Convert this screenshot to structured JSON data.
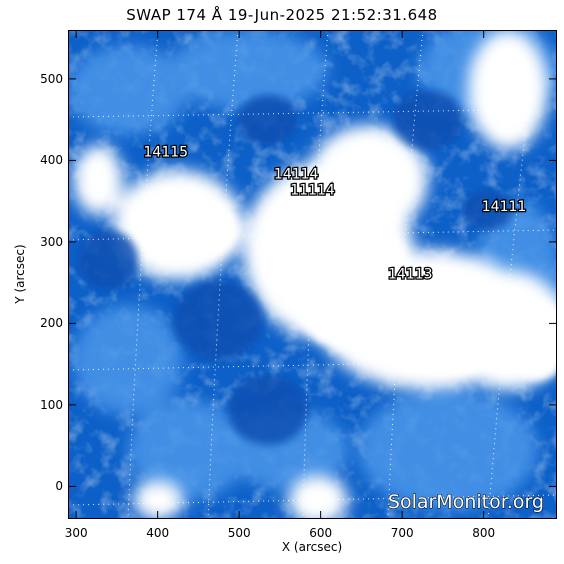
{
  "title": "SWAP 174 Å 19-Jun-2025 21:52:31.648",
  "watermark": "SolarMonitor.org",
  "axes": {
    "xlabel": "X (arcsec)",
    "ylabel": "Y (arcsec)",
    "xlim": [
      290,
      890
    ],
    "ylim": [
      -40,
      560
    ],
    "xticks": [
      "300",
      "400",
      "500",
      "600",
      "700",
      "800"
    ],
    "yticks": [
      "0",
      "100",
      "200",
      "300",
      "400",
      "500"
    ]
  },
  "regions": [
    {
      "label": "14115",
      "x": 410,
      "y": 405
    },
    {
      "label": "14114",
      "x": 570,
      "y": 378
    },
    {
      "label": "11114",
      "x": 590,
      "y": 358
    },
    {
      "label": "14111",
      "x": 825,
      "y": 338
    },
    {
      "label": "14113",
      "x": 710,
      "y": 255
    }
  ],
  "colors": {
    "background": "#0d60c8",
    "bright": "#ffffff",
    "mid": "#4c97ea",
    "dark": "#0a4fb2"
  }
}
